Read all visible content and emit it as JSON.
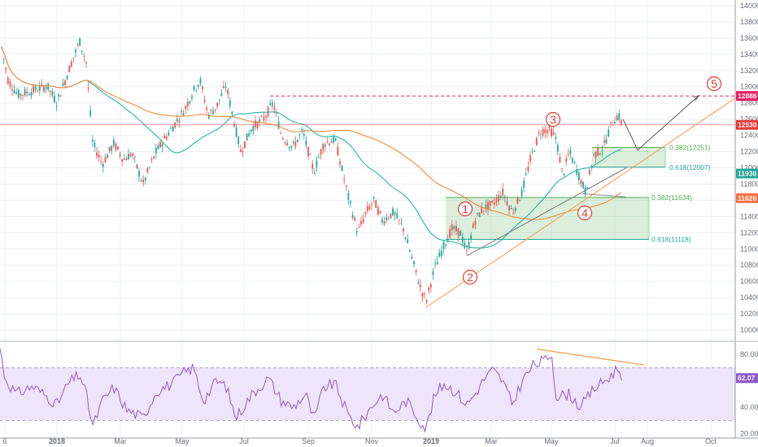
{
  "chart_data": [
    {
      "type": "candlestick",
      "price_axis": {
        "ylim": [
          9900,
          14050
        ],
        "tick_labels": [
          "14000",
          "13800",
          "13600",
          "13400",
          "13200",
          "13000",
          "12800",
          "12600",
          "12400",
          "12200",
          "12000",
          "11800",
          "11600",
          "11400",
          "11200",
          "11000",
          "10800",
          "10600",
          "10400",
          "10200",
          "10000"
        ]
      },
      "time_axis": {
        "tick_labels": [
          "6",
          "2018",
          "Mar",
          "May",
          "Jul",
          "Sep",
          "Nov",
          "2019",
          "Mar",
          "May",
          "Jul",
          "Aug",
          "Oct"
        ]
      },
      "price_badges": [
        {
          "value": "12886",
          "color": "#e91e63"
        },
        {
          "value": "12530",
          "color": "#e53935"
        },
        {
          "value": "11930",
          "color": "#26a69a"
        },
        {
          "value": "11626",
          "color": "#ff7043"
        }
      ],
      "close_price": 12530,
      "target_price": 12886,
      "fib_levels": [
        {
          "label": "0.382(12251)",
          "value": 12251,
          "color": "#4caf50"
        },
        {
          "label": "0.618(12007)",
          "value": 12007,
          "color": "#26a69a"
        },
        {
          "label": "0.382(11634)",
          "value": 11634,
          "color": "#4caf50"
        },
        {
          "label": "0.618(11118)",
          "value": 11118,
          "color": "#26a69a"
        }
      ],
      "wave_labels": [
        "1",
        "2",
        "3",
        "4",
        "5"
      ],
      "moving_averages": [
        {
          "color": "#26b5a8"
        },
        {
          "color": "#f08c3c"
        }
      ],
      "colors": {
        "up": "#26a69a",
        "down": "#ef5350",
        "grid": "#eef0f3",
        "trend": "#f6a15a",
        "arrow": "#555555"
      }
    },
    {
      "type": "line",
      "indicator": "RSI",
      "ylim": [
        18,
        88
      ],
      "tick_labels": [
        "80.00",
        "60.00",
        "40.00",
        "20.00"
      ],
      "bands": [
        70,
        30
      ],
      "current_label": "62.07",
      "current_value": 62.07,
      "colors": {
        "line": "#8e5ac8",
        "band_fill": "#f0e4fb",
        "badge": "#8e5ac8",
        "divergence": "#f39c4a"
      }
    }
  ]
}
